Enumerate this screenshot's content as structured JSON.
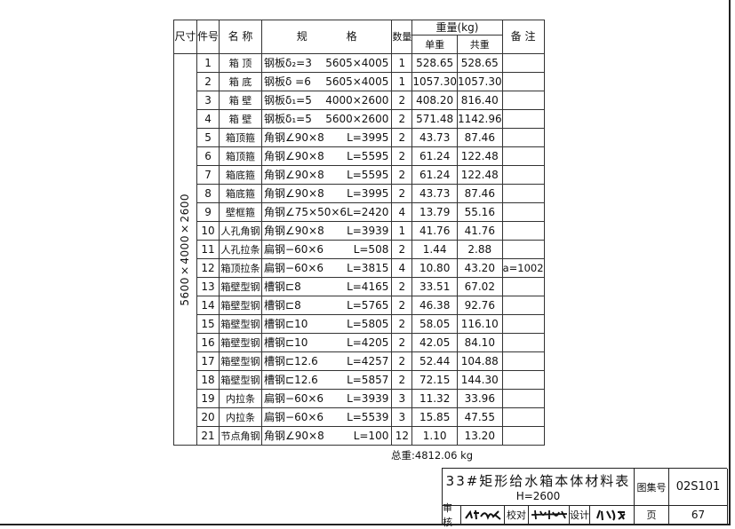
{
  "table": {
    "headers": {
      "size": "尺寸",
      "no": "件号",
      "name": "名 称",
      "spec": "规 格",
      "qty": "数量",
      "weight": "重量(kg)",
      "unit": "单重",
      "total": "共重",
      "remark": "备 注"
    },
    "size_label": "5600×4000×2600",
    "rows": [
      {
        "no": "1",
        "name": "箱 顶",
        "spec": "钢板δ₂=3",
        "len": "5605×4005",
        "qty": "1",
        "unit": "528.65",
        "total": "528.65",
        "remark": ""
      },
      {
        "no": "2",
        "name": "箱 底",
        "spec": "钢板δ =6",
        "len": "5605×4005",
        "qty": "1",
        "unit": "1057.30",
        "total": "1057.30",
        "remark": ""
      },
      {
        "no": "3",
        "name": "箱 壁",
        "spec": "钢板δ₁=5",
        "len": "4000×2600",
        "qty": "2",
        "unit": "408.20",
        "total": "816.40",
        "remark": ""
      },
      {
        "no": "4",
        "name": "箱 壁",
        "spec": "钢板δ₁=5",
        "len": "5600×2600",
        "qty": "2",
        "unit": "571.48",
        "total": "1142.96",
        "remark": ""
      },
      {
        "no": "5",
        "name": "箱顶箍",
        "spec": "角钢∠90×8",
        "len": "L=3995",
        "qty": "2",
        "unit": "43.73",
        "total": "87.46",
        "remark": ""
      },
      {
        "no": "6",
        "name": "箱顶箍",
        "spec": "角钢∠90×8",
        "len": "L=5595",
        "qty": "2",
        "unit": "61.24",
        "total": "122.48",
        "remark": ""
      },
      {
        "no": "7",
        "name": "箱底箍",
        "spec": "角钢∠90×8",
        "len": "L=5595",
        "qty": "2",
        "unit": "61.24",
        "total": "122.48",
        "remark": ""
      },
      {
        "no": "8",
        "name": "箱底箍",
        "spec": "角钢∠90×8",
        "len": "L=3995",
        "qty": "2",
        "unit": "43.73",
        "total": "87.46",
        "remark": ""
      },
      {
        "no": "9",
        "name": "壁框箍",
        "spec": "角钢∠75×50×6",
        "len": "L=2420",
        "qty": "4",
        "unit": "13.79",
        "total": "55.16",
        "remark": ""
      },
      {
        "no": "10",
        "name": "人孔角钢",
        "spec": "角钢∠90×8",
        "len": "L=3939",
        "qty": "1",
        "unit": "41.76",
        "total": "41.76",
        "remark": ""
      },
      {
        "no": "11",
        "name": "人孔拉条",
        "spec": "扁钢−60×6",
        "len": "L=508",
        "qty": "2",
        "unit": "1.44",
        "total": "2.88",
        "remark": ""
      },
      {
        "no": "12",
        "name": "箱顶拉条",
        "spec": "扁钢−60×6",
        "len": "L=3815",
        "qty": "4",
        "unit": "10.80",
        "total": "43.20",
        "remark": "a=1002"
      },
      {
        "no": "13",
        "name": "箱壁型钢",
        "spec": "槽钢⊏8",
        "len": "L=4165",
        "qty": "2",
        "unit": "33.51",
        "total": "67.02",
        "remark": ""
      },
      {
        "no": "14",
        "name": "箱壁型钢",
        "spec": "槽钢⊏8",
        "len": "L=5765",
        "qty": "2",
        "unit": "46.38",
        "total": "92.76",
        "remark": ""
      },
      {
        "no": "15",
        "name": "箱壁型钢",
        "spec": "槽钢⊏10",
        "len": "L=5805",
        "qty": "2",
        "unit": "58.05",
        "total": "116.10",
        "remark": ""
      },
      {
        "no": "16",
        "name": "箱壁型钢",
        "spec": "槽钢⊏10",
        "len": "L=4205",
        "qty": "2",
        "unit": "42.05",
        "total": "84.10",
        "remark": ""
      },
      {
        "no": "17",
        "name": "箱壁型钢",
        "spec": "槽钢⊏12.6",
        "len": "L=4257",
        "qty": "2",
        "unit": "52.44",
        "total": "104.88",
        "remark": ""
      },
      {
        "no": "18",
        "name": "箱壁型钢",
        "spec": "槽钢⊏12.6",
        "len": "L=5857",
        "qty": "2",
        "unit": "72.15",
        "total": "144.30",
        "remark": ""
      },
      {
        "no": "19",
        "name": "内拉条",
        "spec": "扁钢−60×6",
        "len": "L=3939",
        "qty": "3",
        "unit": "11.32",
        "total": "33.96",
        "remark": ""
      },
      {
        "no": "20",
        "name": "内拉条",
        "spec": "扁钢−60×6",
        "len": "L=5539",
        "qty": "3",
        "unit": "15.85",
        "total": "47.55",
        "remark": ""
      },
      {
        "no": "21",
        "name": "节点角钢",
        "spec": "角钢∠90×8",
        "len": "L=100",
        "qty": "12",
        "unit": "1.10",
        "total": "13.20",
        "remark": ""
      }
    ]
  },
  "total_weight": "总重:4812.06 kg",
  "title_block": {
    "title": "33#矩形给水箱本体材料表",
    "subtitle": "H=2600",
    "atlas_label": "图集号",
    "atlas_no": "02S101",
    "review_label": "审核",
    "check_label": "校对",
    "design_label": "设计",
    "page_label": "页",
    "page_no": "67"
  }
}
